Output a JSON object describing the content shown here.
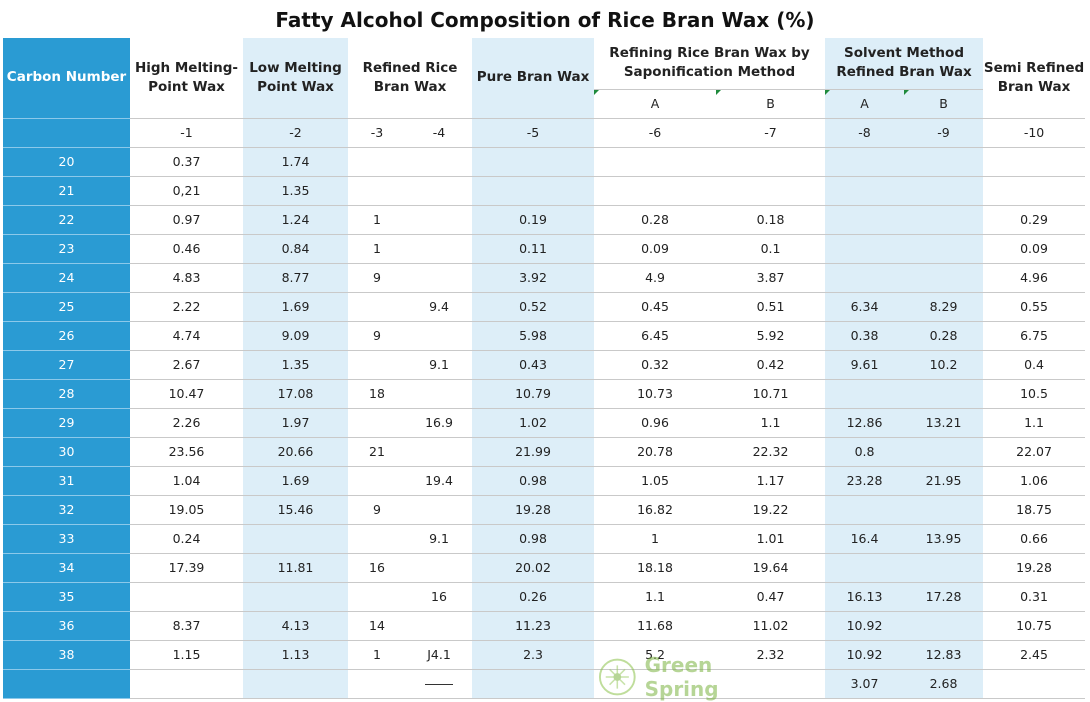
{
  "title": "Fatty Alcohol Composition of Rice Bran Wax (%)",
  "headers": {
    "carbon_number": "Carbon Number",
    "high_melting": "High Melting-Point Wax",
    "low_melting": "Low Melting Point Wax",
    "refined": "Refined Rice Bran Wax",
    "pure": "Pure Bran Wax",
    "saponification": "Refining Rice Bran Wax by Saponification Method",
    "solvent": "Solvent Method Refined Bran Wax",
    "semi": "Semi Refined Bran Wax",
    "sap_a": "A",
    "sap_b": "B",
    "sol_a": "A",
    "sol_b": "B"
  },
  "column_numbers": [
    "-1",
    "-2",
    "-3",
    "-4",
    "-5",
    "-6",
    "-7",
    "-8",
    "-9",
    "-10"
  ],
  "rows": [
    {
      "carbon": "20",
      "cells": [
        "0.37",
        "1.74",
        "",
        "",
        "",
        "",
        "",
        "",
        "",
        ""
      ]
    },
    {
      "carbon": "21",
      "cells": [
        "0,21",
        "1.35",
        "",
        "",
        "",
        "",
        "",
        "",
        "",
        ""
      ]
    },
    {
      "carbon": "22",
      "cells": [
        "0.97",
        "1.24",
        "1",
        "",
        "0.19",
        "0.28",
        "0.18",
        "",
        "",
        "0.29"
      ]
    },
    {
      "carbon": "23",
      "cells": [
        "0.46",
        "0.84",
        "1",
        "",
        "0.11",
        "0.09",
        "0.1",
        "",
        "",
        "0.09"
      ]
    },
    {
      "carbon": "24",
      "cells": [
        "4.83",
        "8.77",
        "9",
        "",
        "3.92",
        "4.9",
        "3.87",
        "",
        "",
        "4.96"
      ]
    },
    {
      "carbon": "25",
      "cells": [
        "2.22",
        "1.69",
        "",
        "9.4",
        "0.52",
        "0.45",
        "0.51",
        "6.34",
        "8.29",
        "0.55"
      ]
    },
    {
      "carbon": "26",
      "cells": [
        "4.74",
        "9.09",
        "9",
        "",
        "5.98",
        "6.45",
        "5.92",
        "0.38",
        "0.28",
        "6.75"
      ]
    },
    {
      "carbon": "27",
      "cells": [
        "2.67",
        "1.35",
        "",
        "9.1",
        "0.43",
        "0.32",
        "0.42",
        "9.61",
        "10.2",
        "0.4"
      ]
    },
    {
      "carbon": "28",
      "cells": [
        "10.47",
        "17.08",
        "18",
        "",
        "10.79",
        "10.73",
        "10.71",
        "",
        "",
        "10.5"
      ]
    },
    {
      "carbon": "29",
      "cells": [
        "2.26",
        "1.97",
        "",
        "16.9",
        "1.02",
        "0.96",
        "1.1",
        "12.86",
        "13.21",
        "1.1"
      ]
    },
    {
      "carbon": "30",
      "cells": [
        "23.56",
        "20.66",
        "21",
        "",
        "21.99",
        "20.78",
        "22.32",
        "0.8",
        "",
        "22.07"
      ]
    },
    {
      "carbon": "31",
      "cells": [
        "1.04",
        "1.69",
        "",
        "19.4",
        "0.98",
        "1.05",
        "1.17",
        "23.28",
        "21.95",
        "1.06"
      ]
    },
    {
      "carbon": "32",
      "cells": [
        "19.05",
        "15.46",
        "9",
        "",
        "19.28",
        "16.82",
        "19.22",
        "",
        "",
        "18.75"
      ]
    },
    {
      "carbon": "33",
      "cells": [
        "0.24",
        "",
        "",
        "9.1",
        "0.98",
        "1",
        "1.01",
        "16.4",
        "13.95",
        "0.66"
      ]
    },
    {
      "carbon": "34",
      "cells": [
        "17.39",
        "11.81",
        "16",
        "",
        "20.02",
        "18.18",
        "19.64",
        "",
        "",
        "19.28"
      ]
    },
    {
      "carbon": "35",
      "cells": [
        "",
        "",
        "",
        "16",
        "0.26",
        "1.1",
        "0.47",
        "16.13",
        "17.28",
        "0.31"
      ]
    },
    {
      "carbon": "36",
      "cells": [
        "8.37",
        "4.13",
        "14",
        "",
        "11.23",
        "11.68",
        "11.02",
        "10.92",
        "",
        "10.75"
      ]
    },
    {
      "carbon": "38",
      "cells": [
        "1.15",
        "1.13",
        "1",
        "J4.1",
        "2.3",
        "5.2",
        "2.32",
        "10.92",
        "12.83",
        "2.45"
      ]
    },
    {
      "carbon": "",
      "cells": [
        "",
        "",
        "",
        "",
        "",
        "",
        "",
        "3.07",
        "2.68",
        ""
      ]
    }
  ],
  "watermark_text": "Green Spring"
}
